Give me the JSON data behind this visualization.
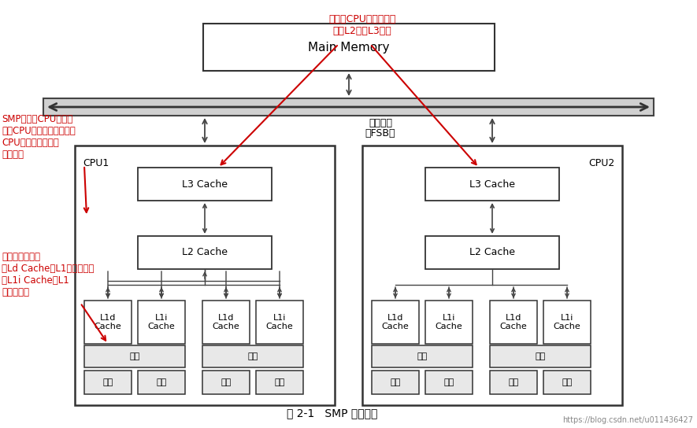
{
  "title": "图 2-1   SMP 系统结构",
  "watermark": "https://blog.csdn.net/u011436427",
  "bg_color": "#ffffff",
  "annotation_color": "#cc0000",
  "ann1_text": "同一个CPU的多个核心\n共享L2以及L3缓存",
  "ann2_text": "SMP由两个CPU构成，\n每个CPU由两个核心构成；\nCPU与内存之间通过\n总线通信",
  "ann3_text": "每个核心有各自\n的Ld Cache（L1数据缓存）\n和L1i Cache（L1\n指令缓存）",
  "fsb_label1": "前端总线",
  "fsb_label2": "（FSB）",
  "cpu1_label": "CPU1",
  "cpu2_label": "CPU2",
  "l3_label": "L3 Cache",
  "l2_label": "L2 Cache",
  "l1d_label": "L1d\nCache",
  "l1i_label": "L1i\nCache",
  "core_label": "核心",
  "thread_label": "线程",
  "mm_label": "Main Memory"
}
